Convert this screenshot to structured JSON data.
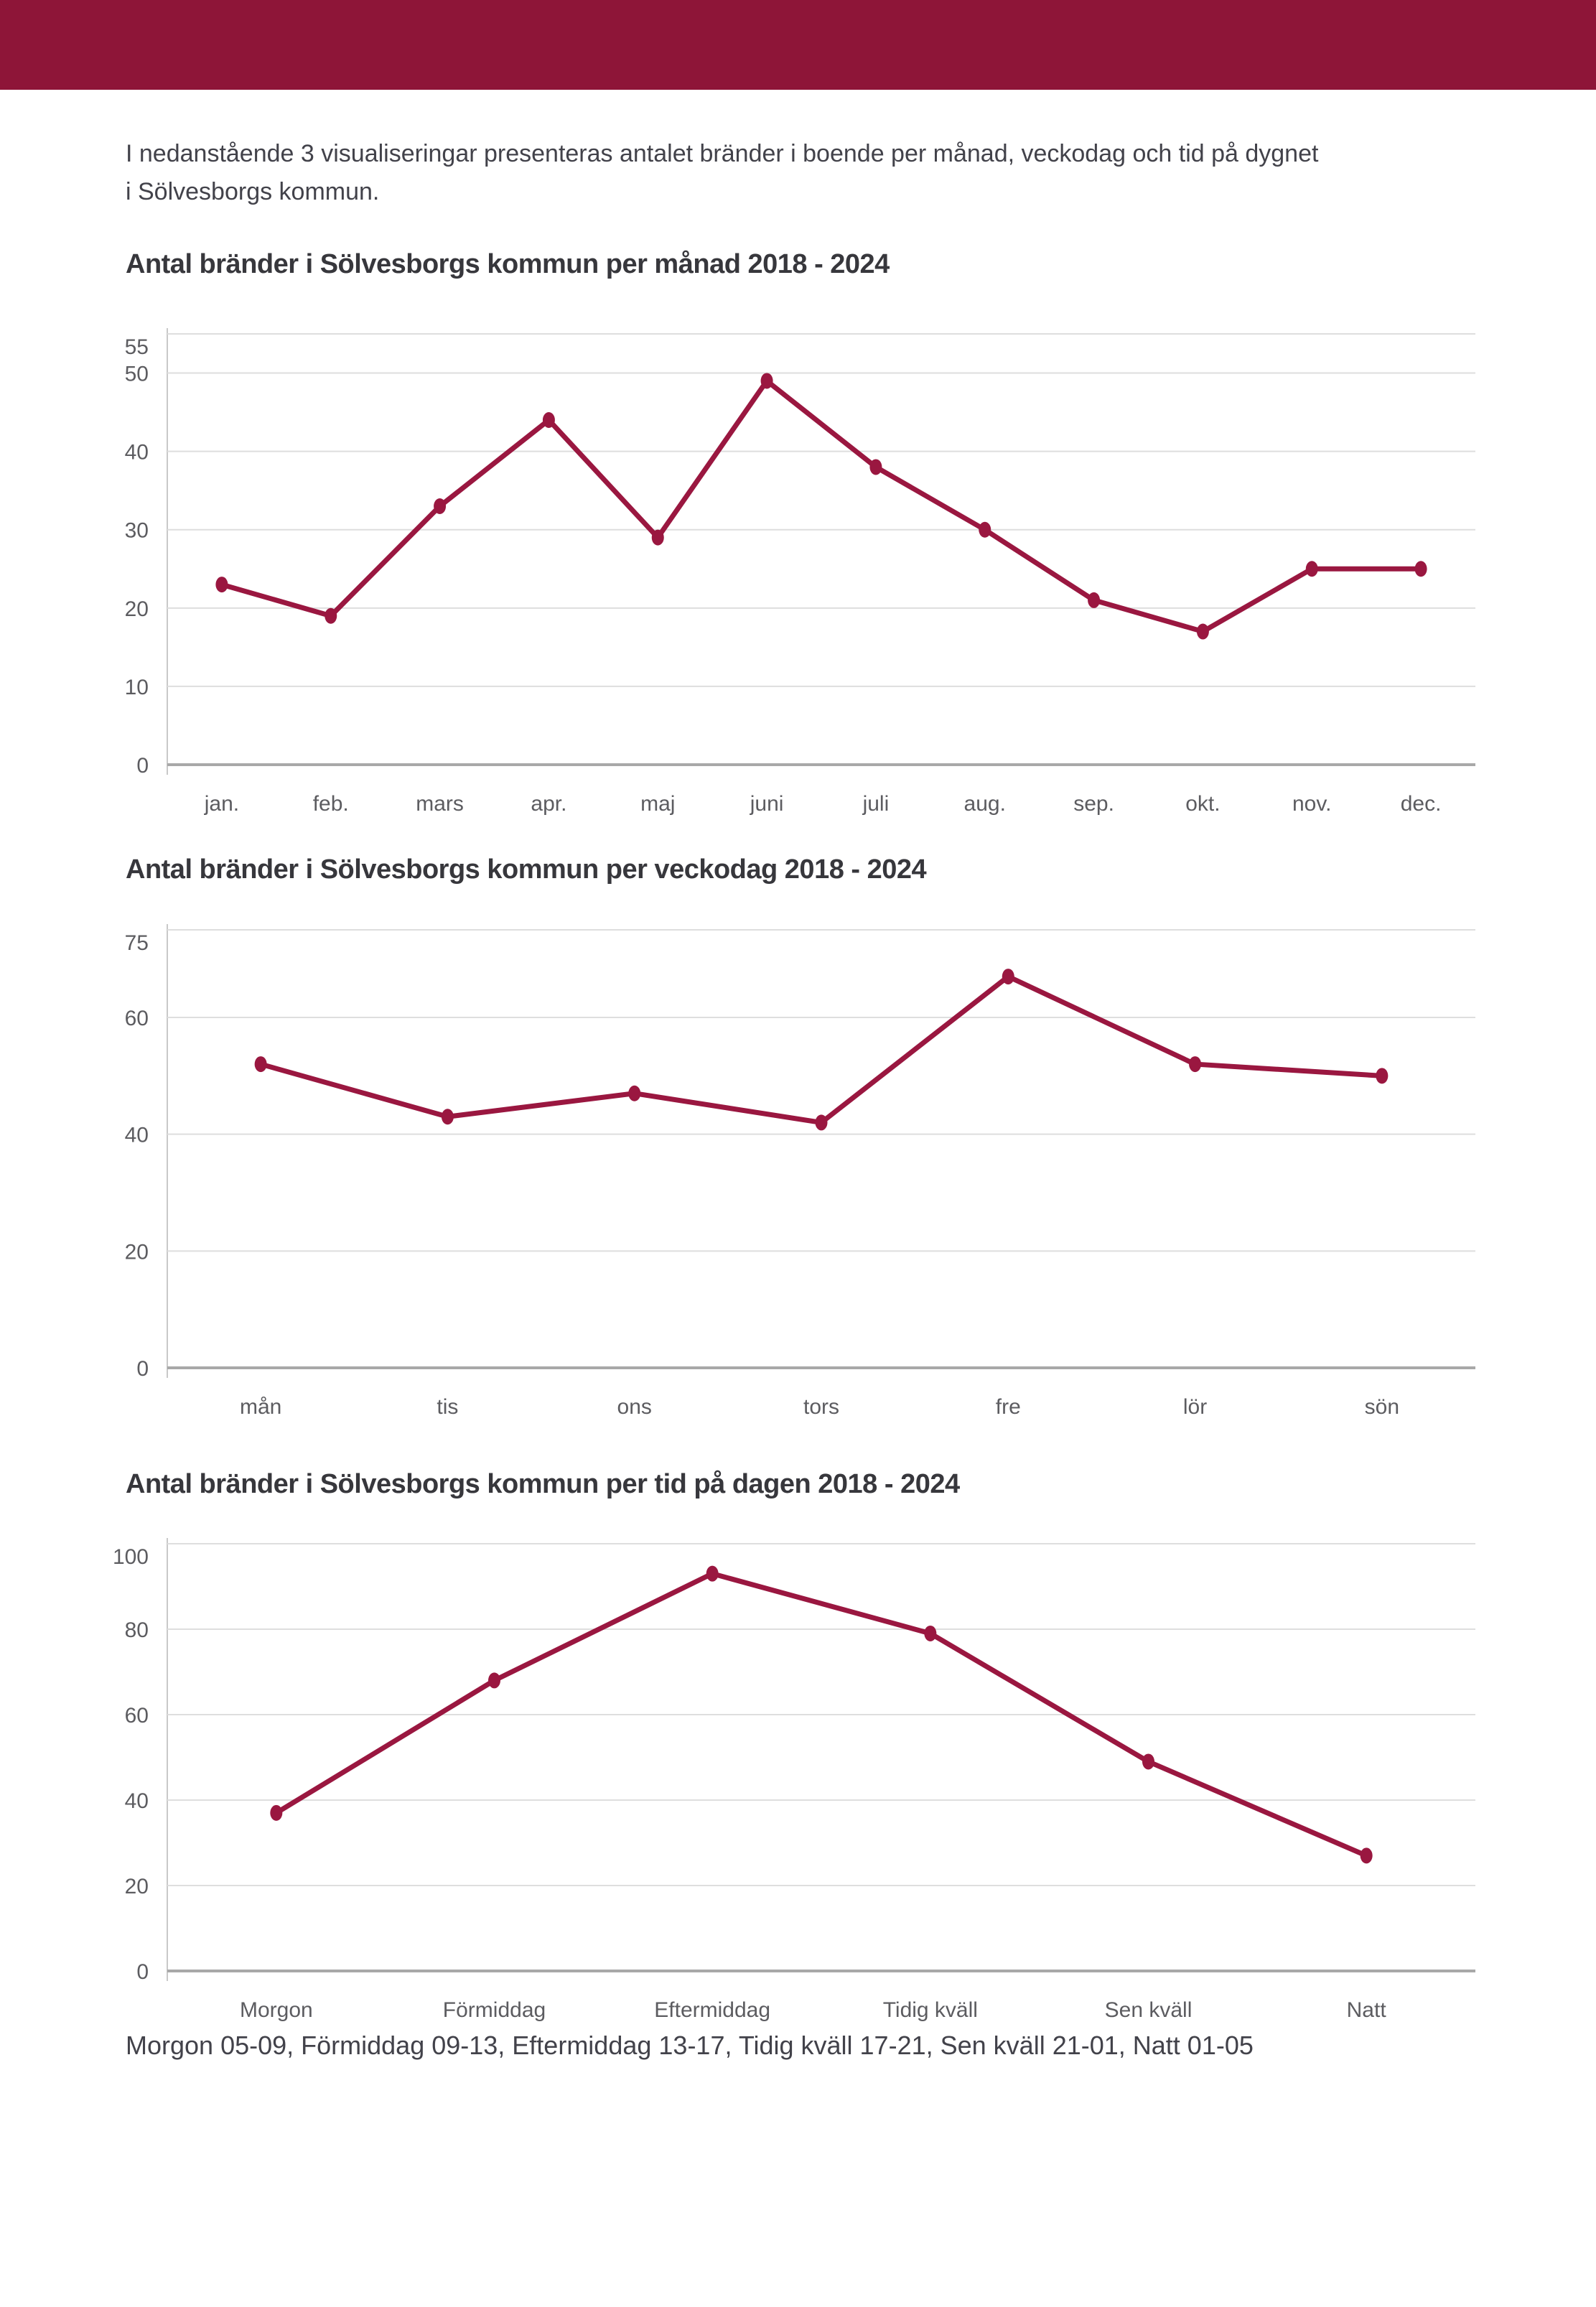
{
  "colors": {
    "accent": "#9a1740",
    "header_bar": "#8e1538",
    "gridline": "#dedede",
    "zero_axis": "#a8a8a8",
    "tick_text": "#5c5c60"
  },
  "intro": {
    "line1": "I nedanstående 3 visualiseringar presenteras antalet bränder i boende per månad, veckodag och tid på dygnet",
    "line2": "i Sölvesborgs kommun."
  },
  "footnote": "Morgon 05-09, Förmiddag 09-13, Eftermiddag 13-17, Tidig kväll 17-21, Sen kväll 21-01, Natt 01-05",
  "chart_data": [
    {
      "type": "line",
      "title": "Antal bränder i Sölvesborgs kommun per månad 2018 - 2024",
      "categories": [
        "jan.",
        "feb.",
        "mars",
        "apr.",
        "maj",
        "juni",
        "juli",
        "aug.",
        "sep.",
        "okt.",
        "nov.",
        "dec."
      ],
      "values": [
        23,
        19,
        33,
        44,
        29,
        49,
        38,
        30,
        21,
        17,
        25,
        25
      ],
      "xlabel": "",
      "ylabel": "",
      "ylim": [
        0,
        55
      ],
      "yticks": [
        0,
        10,
        20,
        30,
        40,
        50,
        55
      ],
      "grid": "horizontal",
      "legend": "none",
      "line_color": "#9a1740"
    },
    {
      "type": "line",
      "title": "Antal bränder i Sölvesborgs kommun per veckodag 2018 - 2024",
      "categories": [
        "mån",
        "tis",
        "ons",
        "tors",
        "fre",
        "lör",
        "sön"
      ],
      "values": [
        52,
        43,
        47,
        42,
        67,
        52,
        50
      ],
      "xlabel": "",
      "ylabel": "",
      "ylim": [
        0,
        75
      ],
      "yticks": [
        0,
        20,
        40,
        60,
        75
      ],
      "grid": "horizontal",
      "legend": "none",
      "line_color": "#9a1740"
    },
    {
      "type": "line",
      "title": "Antal bränder i Sölvesborgs kommun per tid på dagen 2018 - 2024",
      "categories": [
        "Morgon",
        "Förmiddag",
        "Eftermiddag",
        "Tidig kväll",
        "Sen kväll",
        "Natt"
      ],
      "values": [
        37,
        68,
        93,
        79,
        49,
        27
      ],
      "xlabel": "",
      "ylabel": "",
      "ylim": [
        0,
        100
      ],
      "yticks": [
        0,
        20,
        40,
        60,
        80,
        100
      ],
      "grid": "horizontal",
      "legend": "none",
      "line_color": "#9a1740"
    }
  ]
}
